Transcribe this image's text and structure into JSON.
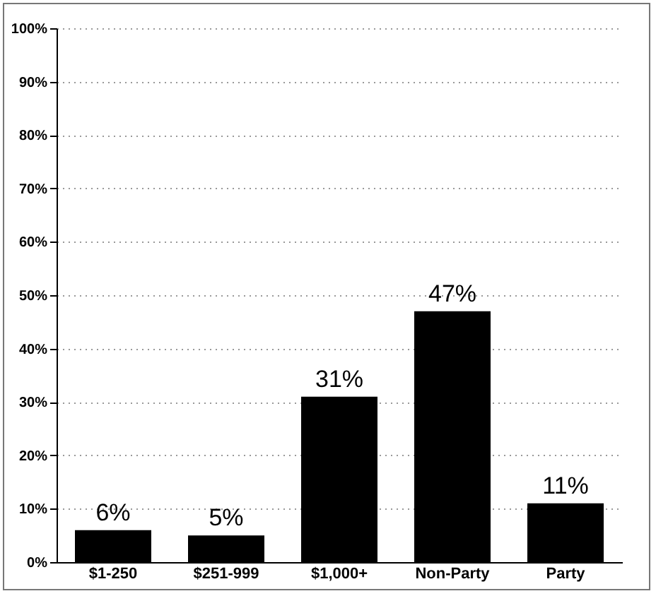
{
  "chart_data": {
    "type": "bar",
    "categories": [
      "$1-250",
      "$251-999",
      "$1,000+",
      "Non-Party",
      "Party"
    ],
    "values": [
      6,
      5,
      31,
      47,
      11
    ],
    "color": "#000000",
    "value_labels": [
      "6%",
      "5%",
      "31%",
      "47%",
      "11%"
    ],
    "ylim": [
      0,
      100
    ],
    "yticks": [
      {
        "value": 0,
        "label": "0%"
      },
      {
        "value": 10,
        "label": "10%"
      },
      {
        "value": 20,
        "label": "20%"
      },
      {
        "value": 30,
        "label": "30%"
      },
      {
        "value": 40,
        "label": "40%"
      },
      {
        "value": 50,
        "label": "50%"
      },
      {
        "value": 60,
        "label": "60%"
      },
      {
        "value": 70,
        "label": "70%"
      },
      {
        "value": 80,
        "label": "80%"
      },
      {
        "value": 90,
        "label": "90%"
      },
      {
        "value": 100,
        "label": "100%"
      }
    ],
    "grid": "y"
  }
}
